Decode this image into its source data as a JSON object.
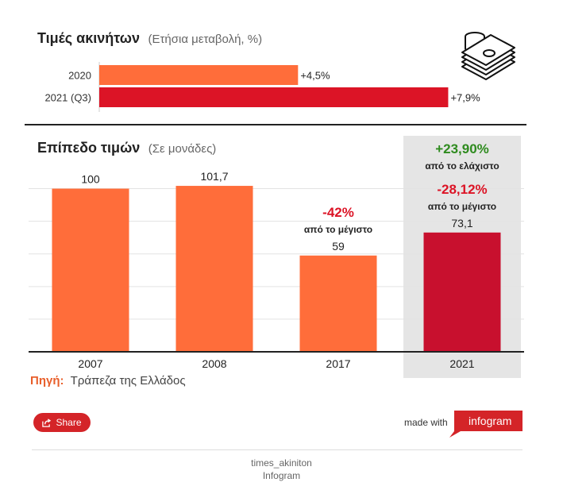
{
  "colors": {
    "orange": "#ff6d3a",
    "red": "#dc1426",
    "dark_red": "#c8102e",
    "green": "#2e8b1e",
    "highlight_bg": "#e5e5e5",
    "source_label": "#e85f2b"
  },
  "chart_data": [
    {
      "type": "bar",
      "orientation": "horizontal",
      "title": "Τιμές ακινήτων",
      "subtitle": "(Ετήσια μεταβολή, %)",
      "categories": [
        "2020",
        "2021 (Q3)"
      ],
      "values": [
        4.5,
        7.9
      ],
      "data_labels": [
        "+4,5%",
        "+7,9%"
      ],
      "bar_colors": [
        "#ff6d3a",
        "#dc1426"
      ],
      "xlim": [
        0,
        8
      ],
      "grid": false
    },
    {
      "type": "bar",
      "orientation": "vertical",
      "title": "Επίπεδο τιμών",
      "subtitle": "(Σε μονάδες)",
      "categories": [
        "2007",
        "2008",
        "2017",
        "2021"
      ],
      "values": [
        100,
        101.7,
        59,
        73.1
      ],
      "data_labels": [
        "100",
        "101,7",
        "59",
        "73,1"
      ],
      "bar_colors": [
        "#ff6d3a",
        "#ff6d3a",
        "#ff6d3a",
        "#c8102e"
      ],
      "ylim": [
        0,
        110
      ],
      "grid": true,
      "highlighted_category": "2021",
      "annotations": [
        {
          "category": "2017",
          "value": "-42%",
          "text": "από το μέγιστο",
          "color": "#dc1426"
        },
        {
          "category": "2021",
          "value": "+23,90%",
          "text": "από το ελάχιστο",
          "color": "#2e8b1e"
        },
        {
          "category": "2021",
          "value": "-28,12%",
          "text": "από το μέγιστο",
          "color": "#dc1426"
        }
      ]
    }
  ],
  "source": {
    "label": "Πηγή:",
    "text": "Τράπεζα της Ελλάδος"
  },
  "footer": {
    "share_label": "Share",
    "made_with": "made with",
    "brand": "infogram",
    "account": "times_akiniton",
    "platform": "Infogram"
  },
  "icons": [
    "money-stack-icon",
    "share-icon"
  ]
}
